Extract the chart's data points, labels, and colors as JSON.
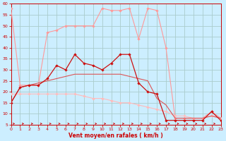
{
  "xlabel": "Vent moyen/en rafales ( km/h )",
  "background_color": "#cceeff",
  "grid_color": "#aacccc",
  "ylim": [
    5,
    60
  ],
  "xlim": [
    0,
    23
  ],
  "yticks": [
    5,
    10,
    15,
    20,
    25,
    30,
    35,
    40,
    45,
    50,
    55,
    60
  ],
  "xticks": [
    0,
    1,
    2,
    3,
    4,
    5,
    6,
    7,
    8,
    9,
    10,
    11,
    12,
    13,
    14,
    15,
    16,
    17,
    18,
    19,
    20,
    21,
    22,
    23
  ],
  "line_gust_x": [
    0,
    1,
    2,
    3,
    4,
    5,
    6,
    7,
    8,
    9,
    10,
    11,
    12,
    13,
    14,
    15,
    16,
    17,
    18,
    19,
    20,
    21,
    22,
    23
  ],
  "line_gust_y": [
    58,
    23,
    23,
    23,
    47,
    48,
    50,
    50,
    50,
    50,
    58,
    57,
    57,
    58,
    44,
    58,
    57,
    40,
    8,
    8,
    8,
    8,
    11,
    8
  ],
  "line_gust_color": "#ff9999",
  "line_low_x": [
    0,
    1,
    2,
    3,
    4,
    5,
    6,
    7,
    8,
    9,
    10,
    11,
    12,
    13,
    14,
    15,
    16,
    17,
    18,
    19,
    20,
    21,
    22,
    23
  ],
  "line_low_y": [
    19,
    19,
    19,
    19,
    19,
    19,
    19,
    19,
    18,
    17,
    17,
    16,
    15,
    15,
    14,
    13,
    12,
    11,
    9,
    9,
    8,
    8,
    9,
    8
  ],
  "line_low_color": "#ffbbbb",
  "line_mean_x": [
    0,
    1,
    2,
    3,
    4,
    5,
    6,
    7,
    8,
    9,
    10,
    11,
    12,
    13,
    14,
    15,
    16,
    17,
    18,
    19,
    20,
    21,
    22,
    23
  ],
  "line_mean_y": [
    15,
    22,
    23,
    23,
    26,
    32,
    30,
    37,
    33,
    32,
    30,
    33,
    37,
    37,
    24,
    20,
    19,
    7,
    7,
    7,
    7,
    7,
    11,
    7
  ],
  "line_mean_color": "#cc1111",
  "line_smooth_x": [
    0,
    1,
    2,
    3,
    4,
    5,
    6,
    7,
    8,
    9,
    10,
    11,
    12,
    13,
    14,
    15,
    16,
    17,
    18,
    19,
    20,
    21,
    22,
    23
  ],
  "line_smooth_y": [
    15,
    22,
    23,
    24,
    25,
    26,
    27,
    28,
    28,
    28,
    28,
    28,
    28,
    27,
    26,
    25,
    17,
    14,
    8,
    8,
    8,
    8,
    9,
    8
  ],
  "line_smooth_color": "#dd5555",
  "xlabel_color": "#cc0000",
  "tick_color": "#cc0000",
  "axis_color": "#cc0000",
  "arrow_color": "#cc0000"
}
